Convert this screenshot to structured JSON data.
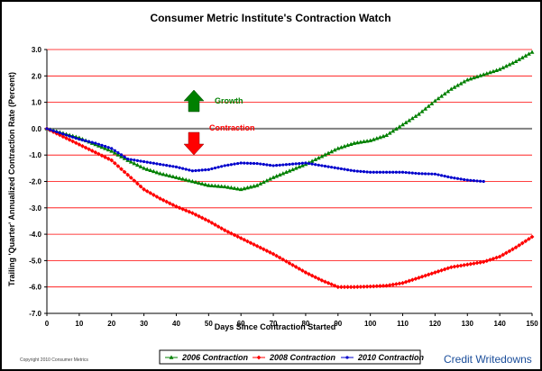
{
  "chart_data": {
    "type": "line",
    "title": "Consumer Metric Institute's Contraction Watch",
    "xlabel": "Days Since Contraction Started",
    "ylabel": "Trailing 'Quarter' Annualized Contraction Rate (Percent)",
    "xlim": [
      0,
      150
    ],
    "ylim": [
      -7.0,
      3.0
    ],
    "x_ticks": [
      "0",
      "10",
      "20",
      "30",
      "40",
      "50",
      "60",
      "70",
      "80",
      "90",
      "100",
      "110",
      "120",
      "130",
      "140",
      "150"
    ],
    "y_ticks": [
      "3.0",
      "2.0",
      "1.0",
      "0.0",
      "-1.0",
      "-2.0",
      "-3.0",
      "-4.0",
      "-5.0",
      "-6.0",
      "-7.0"
    ],
    "grid": "horizontal",
    "legend_position": "bottom",
    "series": [
      {
        "name": "2006 Contraction",
        "color": "#008000",
        "marker": "triangle",
        "x": [
          0,
          10,
          15,
          20,
          25,
          30,
          35,
          40,
          45,
          50,
          55,
          60,
          65,
          70,
          75,
          80,
          85,
          90,
          95,
          100,
          105,
          110,
          115,
          120,
          125,
          130,
          135,
          140,
          145,
          150
        ],
        "y": [
          0.0,
          -0.35,
          -0.6,
          -0.85,
          -1.2,
          -1.5,
          -1.7,
          -1.85,
          -2.0,
          -2.15,
          -2.2,
          -2.3,
          -2.15,
          -1.85,
          -1.6,
          -1.35,
          -1.05,
          -0.75,
          -0.55,
          -0.45,
          -0.25,
          0.15,
          0.55,
          1.05,
          1.5,
          1.85,
          2.05,
          2.25,
          2.55,
          2.9
        ]
      },
      {
        "name": "2008 Contraction",
        "color": "#ff0000",
        "marker": "diamond",
        "x": [
          0,
          10,
          15,
          20,
          25,
          30,
          35,
          40,
          45,
          50,
          55,
          60,
          65,
          70,
          75,
          80,
          85,
          90,
          95,
          100,
          105,
          110,
          115,
          120,
          125,
          130,
          135,
          140,
          145,
          150
        ],
        "y": [
          0.0,
          -0.6,
          -0.9,
          -1.2,
          -1.75,
          -2.3,
          -2.65,
          -2.95,
          -3.2,
          -3.5,
          -3.85,
          -4.15,
          -4.45,
          -4.75,
          -5.1,
          -5.45,
          -5.75,
          -6.0,
          -6.0,
          -5.98,
          -5.95,
          -5.85,
          -5.65,
          -5.45,
          -5.25,
          -5.15,
          -5.05,
          -4.85,
          -4.5,
          -4.1
        ]
      },
      {
        "name": "2010 Contraction",
        "color": "#0000cc",
        "marker": "circle",
        "x": [
          0,
          10,
          15,
          20,
          25,
          30,
          35,
          40,
          45,
          50,
          55,
          60,
          65,
          70,
          75,
          80,
          85,
          90,
          95,
          100,
          105,
          110,
          115,
          120,
          125,
          130,
          135
        ],
        "y": [
          0.0,
          -0.4,
          -0.55,
          -0.75,
          -1.15,
          -1.25,
          -1.35,
          -1.45,
          -1.6,
          -1.55,
          -1.4,
          -1.3,
          -1.32,
          -1.4,
          -1.35,
          -1.3,
          -1.4,
          -1.5,
          -1.6,
          -1.65,
          -1.65,
          -1.65,
          -1.7,
          -1.72,
          -1.85,
          -1.95,
          -2.0
        ]
      }
    ],
    "annotations": [
      {
        "text": "Growth",
        "color": "#008000",
        "arrow": "up"
      },
      {
        "text": "Contraction",
        "color": "#ff0000",
        "arrow": "down"
      }
    ]
  },
  "footer": {
    "copyright": "Copyright 2010 Consumer Metrics",
    "watermark": "Credit Writedowns"
  }
}
